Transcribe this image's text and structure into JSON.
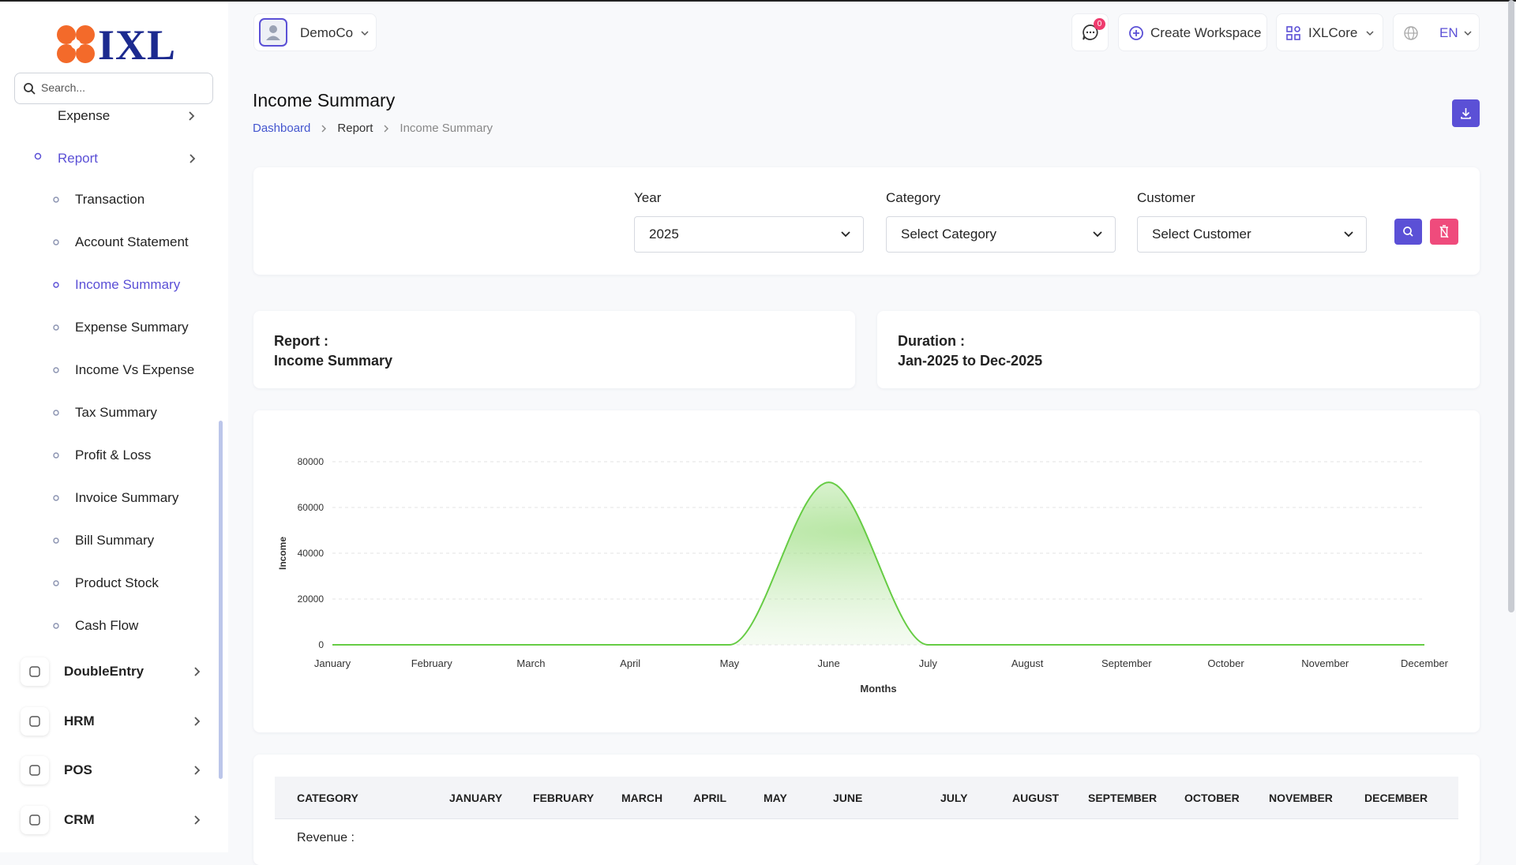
{
  "sidebar": {
    "logo": "IXL",
    "search_placeholder": "Search...",
    "menu": [
      "Expense",
      "Report"
    ],
    "report_items": [
      "Transaction",
      "Account Statement",
      "Income Summary",
      "Expense Summary",
      "Income Vs Expense",
      "Tax Summary",
      "Profit & Loss",
      "Invoice Summary",
      "Bill Summary",
      "Product Stock",
      "Cash Flow"
    ],
    "modules": [
      "DoubleEntry",
      "HRM",
      "POS",
      "CRM"
    ]
  },
  "header": {
    "workspace": "DemoCo",
    "notification_count": 0,
    "create_workspace": "Create Workspace",
    "app": "IXLCore",
    "language": "EN"
  },
  "page": {
    "title": "Income Summary",
    "breadcrumb": [
      "Dashboard",
      "Report",
      "Income Summary"
    ]
  },
  "filters": [
    {
      "label": "Year",
      "value": "2025"
    },
    {
      "label": "Category",
      "value": "Select Category"
    },
    {
      "label": "Customer",
      "value": "Select Customer"
    }
  ],
  "summary": [
    {
      "label": "Report :",
      "value": "Income Summary"
    },
    {
      "label": "Duration :",
      "value": "Jan-2025 to Dec-2025"
    }
  ],
  "chart_data": {
    "type": "line",
    "categories": [
      "January",
      "February",
      "March",
      "April",
      "May",
      "June",
      "July",
      "August",
      "September",
      "October",
      "November",
      "December"
    ],
    "values": [
      0,
      0,
      0,
      0,
      0,
      71000,
      0,
      0,
      0,
      0,
      0,
      0
    ],
    "color": "#66cc44",
    "xlabel": "Months",
    "ylabel": "Income",
    "ylim": [
      0,
      80000
    ],
    "yticks": [
      0,
      20000,
      40000,
      60000,
      80000
    ],
    "grid": true
  },
  "table": {
    "headers": [
      "CATEGORY",
      "JANUARY",
      "FEBRUARY",
      "MARCH",
      "APRIL",
      "MAY",
      "JUNE",
      "JULY",
      "AUGUST",
      "SEPTEMBER",
      "OCTOBER",
      "NOVEMBER",
      "DECEMBER"
    ],
    "rows": [
      [
        "Revenue :"
      ]
    ]
  }
}
